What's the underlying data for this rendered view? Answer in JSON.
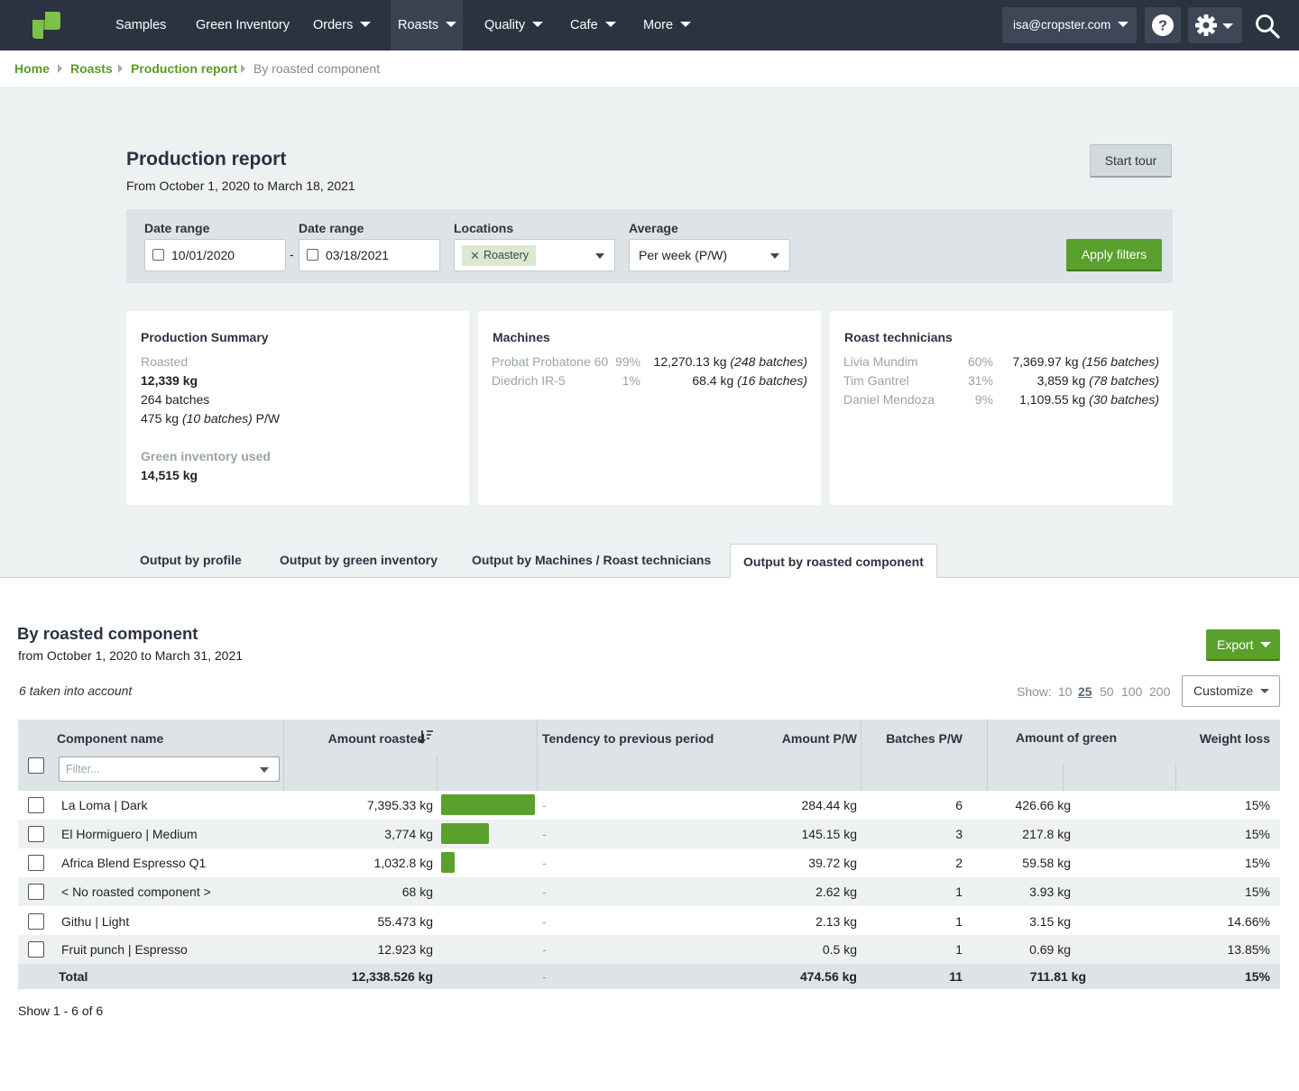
{
  "nav": {
    "items": [
      {
        "label": "Samples"
      },
      {
        "label": "Green Inventory"
      },
      {
        "label": "Orders"
      },
      {
        "label": "Roasts"
      },
      {
        "label": "Quality"
      },
      {
        "label": "Cafe"
      },
      {
        "label": "More"
      }
    ],
    "user_email": "isa@cropster.com"
  },
  "breadcrumb": [
    "Home",
    "Roasts",
    "Production report",
    "By roasted component"
  ],
  "header": {
    "title": "Production report",
    "subtitle": "From October 1, 2020 to March 18, 2021",
    "tour_label": "Start tour"
  },
  "filters": {
    "date_from_label": "Date range",
    "date_from": "10/01/2020",
    "date_to_label": "Date range",
    "date_to": "03/18/2021",
    "locations_label": "Locations",
    "location_chip": "Roastery",
    "average_label": "Average",
    "average_value": "Per week (P/W)",
    "apply_label": "Apply filters"
  },
  "summary": {
    "title": "Production Summary",
    "roasted_label": "Roasted",
    "roasted_kg": "12,339 kg",
    "batches": "264 batches",
    "per_week_kg": "475 kg",
    "per_week_batches": "(10 batches)",
    "per_week_unit": "P/W",
    "green_label": "Green inventory used",
    "green_kg": "14,515 kg"
  },
  "machines": {
    "title": "Machines",
    "rows": [
      {
        "name": "Probat Probatone 60",
        "pct": "99%",
        "kg": "12,270.13 kg",
        "batches": "(248 batches)"
      },
      {
        "name": "Diedrich IR-5",
        "pct": "1%",
        "kg": "68.4 kg",
        "batches": "(16 batches)"
      }
    ]
  },
  "technicians": {
    "title": "Roast technicians",
    "rows": [
      {
        "name": "Livia Mundim",
        "pct": "60%",
        "kg": "7,369.97 kg",
        "batches": "(156 batches)"
      },
      {
        "name": "Tim Gantrel",
        "pct": "31%",
        "kg": "3,859 kg",
        "batches": "(78 batches)"
      },
      {
        "name": "Daniel Mendoza",
        "pct": "9%",
        "kg": "1,109.55 kg",
        "batches": "(30 batches)"
      }
    ]
  },
  "tabs": [
    {
      "label": "Output by profile"
    },
    {
      "label": "Output by green inventory"
    },
    {
      "label": "Output by Machines / Roast technicians"
    },
    {
      "label": "Output by roasted component"
    }
  ],
  "section": {
    "title": "By roasted component",
    "subtitle": "from October 1, 2020 to March 31, 2021",
    "export_label": "Export",
    "taken_text": "6 taken into account",
    "show_label": "Show:",
    "show_options": [
      "10",
      "25",
      "50",
      "100",
      "200"
    ],
    "show_selected": "25",
    "customize_label": "Customize"
  },
  "table": {
    "columns": {
      "name": "Component name",
      "amount": "Amount roasted",
      "tendency": "Tendency to previous period",
      "pw": "Amount P/W",
      "batches": "Batches P/W",
      "green": "Amount of green",
      "loss": "Weight loss"
    },
    "filter_placeholder": "Filter...",
    "rows": [
      {
        "name": "La Loma | Dark",
        "amount": "7,395.33 kg",
        "share": 1.0,
        "tendency": "-",
        "pw": "284.44 kg",
        "batches": "6",
        "green": "426.66 kg",
        "loss": "15%"
      },
      {
        "name": "El Hormiguero | Medium",
        "amount": "3,774 kg",
        "share": 0.51,
        "tendency": "-",
        "pw": "145.15 kg",
        "batches": "3",
        "green": "217.8 kg",
        "loss": "15%"
      },
      {
        "name": "Africa Blend Espresso Q1",
        "amount": "1,032.8 kg",
        "share": 0.14,
        "tendency": "-",
        "pw": "39.72 kg",
        "batches": "2",
        "green": "59.58 kg",
        "loss": "15%"
      },
      {
        "name": "< No roasted component >",
        "amount": "68 kg",
        "share": 0,
        "tendency": "-",
        "pw": "2.62 kg",
        "batches": "1",
        "green": "3.93 kg",
        "loss": "15%"
      },
      {
        "name": "Githu | Light",
        "amount": "55.473 kg",
        "share": 0,
        "tendency": "-",
        "pw": "2.13 kg",
        "batches": "1",
        "green": "3.15 kg",
        "loss": "14.66%"
      },
      {
        "name": "Fruit punch | Espresso",
        "amount": "12.923 kg",
        "share": 0,
        "tendency": "-",
        "pw": "0.5 kg",
        "batches": "1",
        "green": "0.69 kg",
        "loss": "13.85%"
      }
    ],
    "total": {
      "label": "Total",
      "amount": "12,338.526 kg",
      "tendency": "-",
      "pw": "474.56 kg",
      "batches": "11",
      "green": "711.81 kg",
      "loss": "15%"
    },
    "pager": "Show 1 - 6 of 6"
  },
  "colors": {
    "accent": "#5aa02c",
    "nav_bg": "#2b3340",
    "page_bg": "#eef1f2"
  }
}
